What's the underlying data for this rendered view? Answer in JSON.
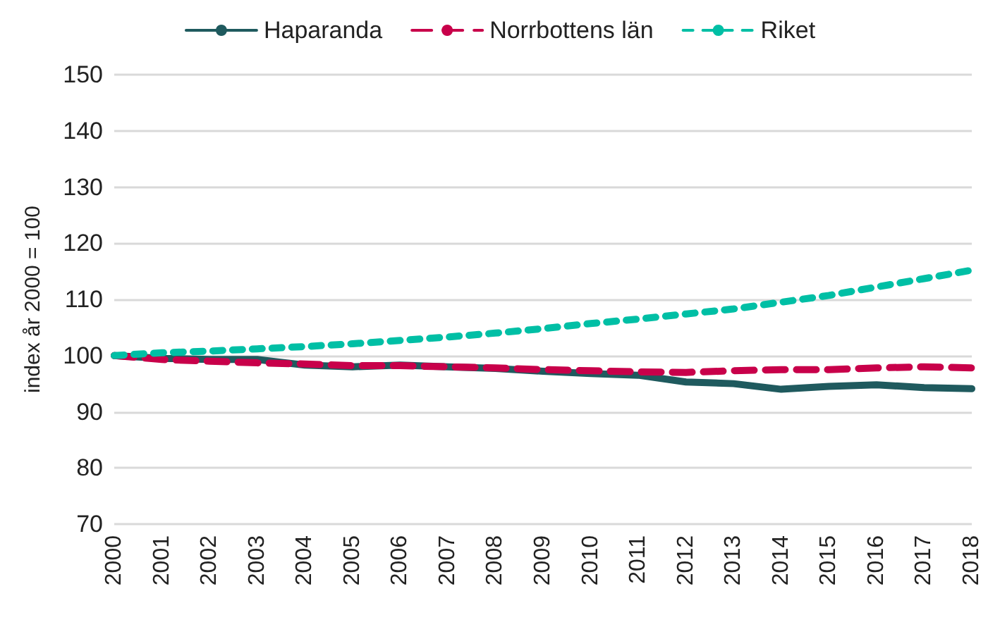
{
  "chart_data": {
    "type": "line",
    "ylabel": "index år 2000 = 100",
    "categories": [
      "2000",
      "2001",
      "2002",
      "2003",
      "2004",
      "2005",
      "2006",
      "2007",
      "2008",
      "2009",
      "2010",
      "2011",
      "2012",
      "2013",
      "2014",
      "2015",
      "2016",
      "2017",
      "2018"
    ],
    "series": [
      {
        "name": "Haparanda",
        "color": "#1f5a5e",
        "line_style": "solid",
        "values": [
          100,
          99.5,
          99.3,
          99.3,
          98.3,
          98,
          98.3,
          98,
          97.7,
          97.2,
          96.8,
          96.5,
          95.3,
          95,
          94,
          94.5,
          94.8,
          94.3,
          94.1
        ]
      },
      {
        "name": "Norrbottens län",
        "color": "#c8004a",
        "line_style": "dashed",
        "values": [
          100,
          99.3,
          99,
          98.7,
          98.5,
          98.2,
          98.2,
          98,
          97.8,
          97.5,
          97.3,
          97.1,
          97,
          97.3,
          97.5,
          97.5,
          97.8,
          98,
          97.8
        ]
      },
      {
        "name": "Riket",
        "color": "#00bfa5",
        "line_style": "dotted",
        "values": [
          100,
          100.5,
          100.8,
          101.2,
          101.6,
          102.1,
          102.7,
          103.3,
          104,
          104.8,
          105.7,
          106.5,
          107.4,
          108.3,
          109.5,
          110.7,
          112.2,
          113.7,
          115.2
        ]
      }
    ],
    "ylim": [
      70,
      150
    ],
    "yticks": [
      70,
      80,
      90,
      100,
      110,
      120,
      130,
      140,
      150
    ],
    "grid": "y",
    "legend": "top",
    "marker": "none"
  }
}
